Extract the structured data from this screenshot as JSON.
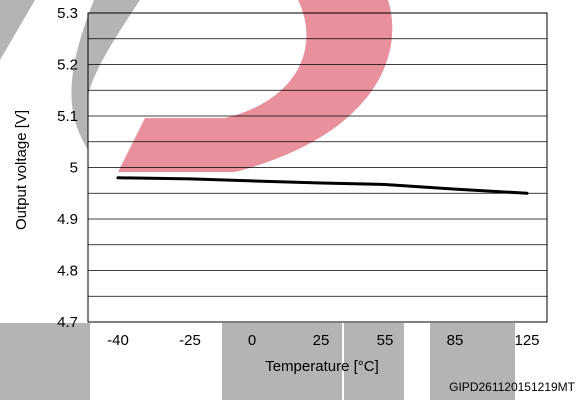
{
  "figure_code": "GIPD261120151219MT",
  "colors": {
    "series": "#000000",
    "grid": "#000000",
    "watermark_red": "#e8909b",
    "watermark_gray": "#b4b4b4"
  },
  "chart_data": {
    "type": "line",
    "xlabel": "Temperature  [°C]",
    "ylabel": "Output voltage  [V]",
    "x_ticks": [
      "-40",
      "-25",
      "0",
      "25",
      "55",
      "85",
      "125"
    ],
    "x": [
      "-40",
      "-25",
      "0",
      "25",
      "55",
      "85",
      "125"
    ],
    "categorical_x": true,
    "y_ticks": [
      "4.7",
      "4.8",
      "4.9",
      "5",
      "5.1",
      "5.2",
      "5.3"
    ],
    "ylim": [
      4.7,
      5.3
    ],
    "grid": true,
    "grid_minor_step": 0.05,
    "series": [
      {
        "x": [
          "-40",
          "-25",
          "0",
          "25",
          "55",
          "85",
          "125"
        ],
        "values": [
          4.98,
          4.978,
          4.974,
          4.97,
          4.967,
          4.958,
          4.95
        ]
      }
    ]
  }
}
